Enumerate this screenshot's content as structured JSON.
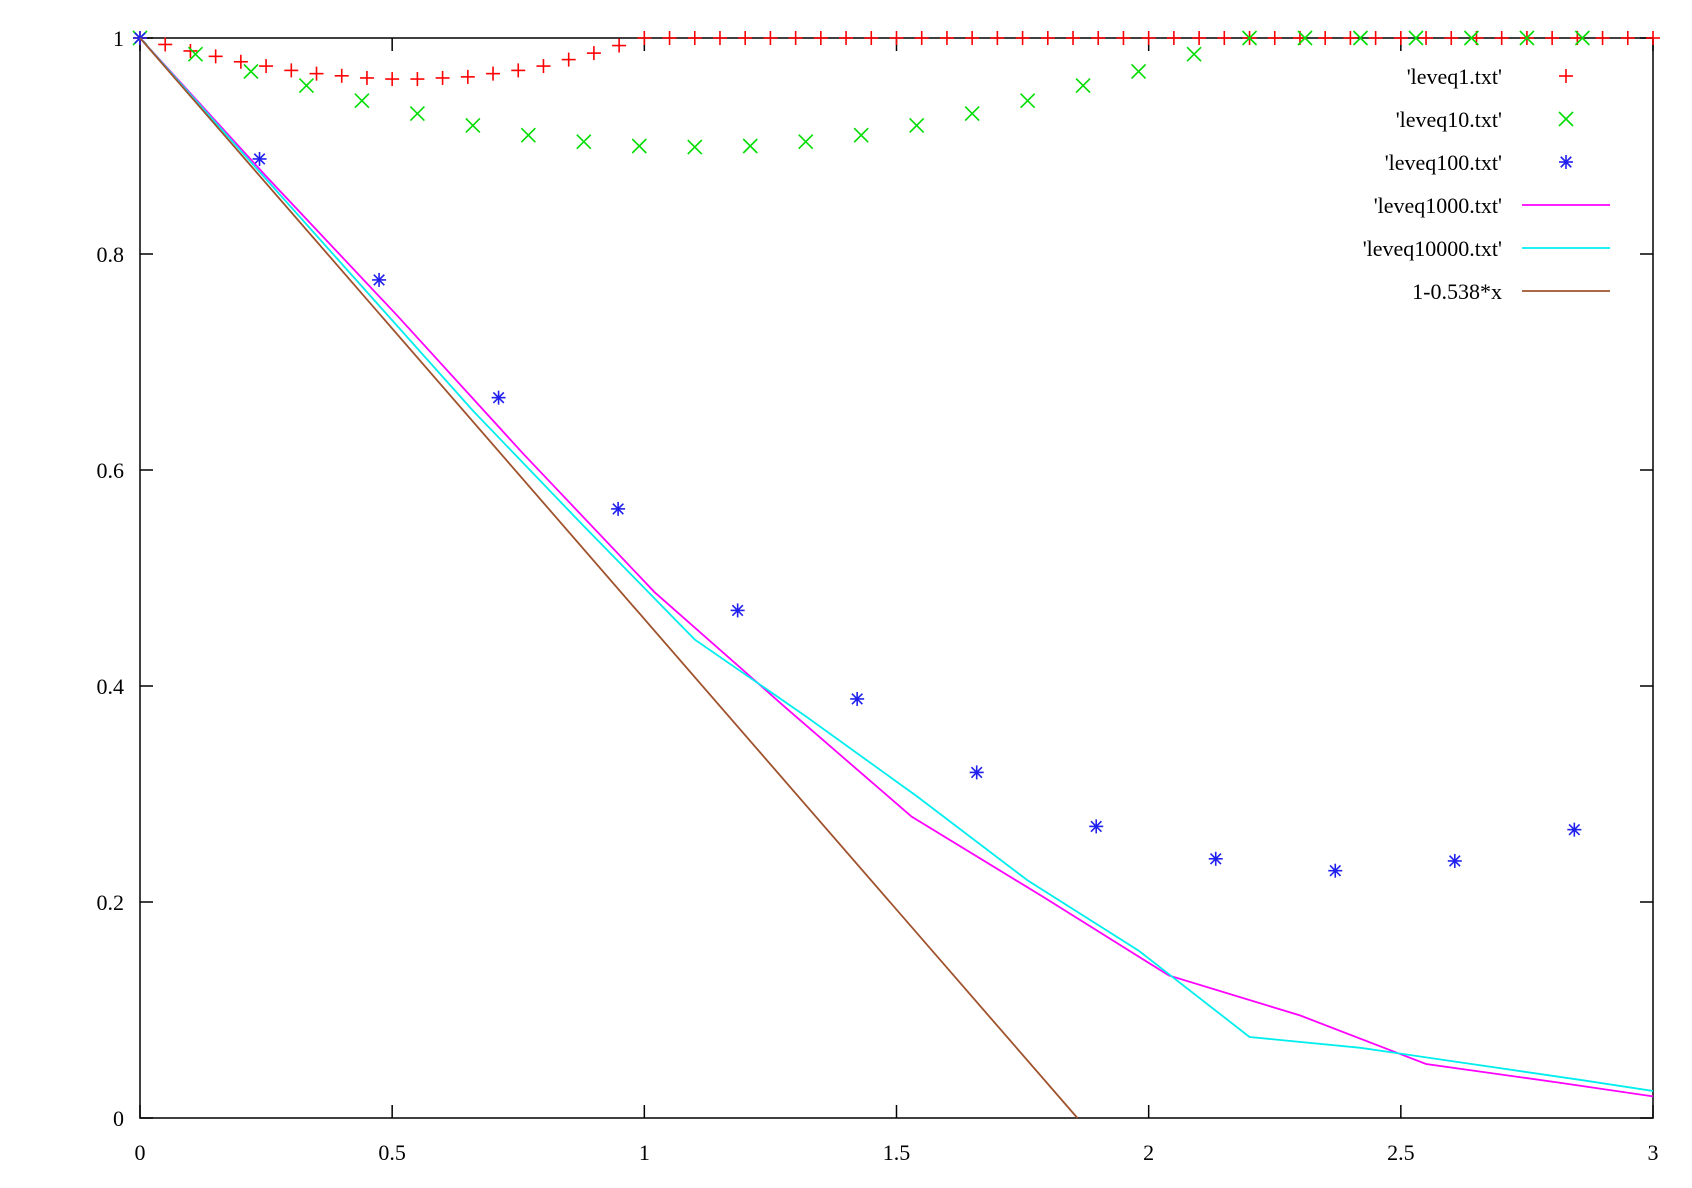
{
  "chart_data": {
    "type": "scatter",
    "title": "",
    "xlabel": "",
    "ylabel": "",
    "xlim": [
      0,
      3
    ],
    "ylim": [
      0,
      1
    ],
    "x_ticks": [
      0,
      0.5,
      1,
      1.5,
      2,
      2.5,
      3
    ],
    "x_tick_labels": [
      "0",
      "0.5",
      "1",
      "1.5",
      "2",
      "2.5",
      "3"
    ],
    "y_ticks": [
      0,
      0.2,
      0.4,
      0.6,
      0.8,
      1
    ],
    "y_tick_labels": [
      "0",
      "0.2",
      "0.4",
      "0.6",
      "0.8",
      "1"
    ],
    "grid": false,
    "legend_position": "top-right",
    "series": [
      {
        "name": "'leveq1.txt'",
        "style": "points",
        "marker": "plus",
        "color": "#ff0000",
        "x": [
          0,
          0.05,
          0.1,
          0.15,
          0.2,
          0.25,
          0.3,
          0.35,
          0.4,
          0.45,
          0.5,
          0.55,
          0.6,
          0.65,
          0.7,
          0.75,
          0.8,
          0.85,
          0.9,
          0.95,
          1.0,
          1.05,
          1.1,
          1.15,
          1.2,
          1.25,
          1.3,
          1.35,
          1.4,
          1.45,
          1.5,
          1.55,
          1.6,
          1.65,
          1.7,
          1.75,
          1.8,
          1.85,
          1.9,
          1.95,
          2.0,
          2.05,
          2.1,
          2.15,
          2.2,
          2.25,
          2.3,
          2.35,
          2.4,
          2.45,
          2.5,
          2.55,
          2.6,
          2.65,
          2.7,
          2.75,
          2.8,
          2.85,
          2.9,
          2.95,
          3.0
        ],
        "y": [
          1.0,
          0.994,
          0.988,
          0.983,
          0.978,
          0.974,
          0.97,
          0.967,
          0.965,
          0.963,
          0.962,
          0.962,
          0.963,
          0.964,
          0.967,
          0.97,
          0.974,
          0.98,
          0.986,
          0.993,
          1.0,
          1.0,
          1.0,
          1.0,
          1.0,
          1.0,
          1.0,
          1.0,
          1.0,
          1.0,
          1.0,
          1.0,
          1.0,
          1.0,
          1.0,
          1.0,
          1.0,
          1.0,
          1.0,
          1.0,
          1.0,
          1.0,
          1.0,
          1.0,
          1.0,
          1.0,
          1.0,
          1.0,
          1.0,
          1.0,
          1.0,
          1.0,
          1.0,
          1.0,
          1.0,
          1.0,
          1.0,
          1.0,
          1.0,
          1.0,
          1.0
        ]
      },
      {
        "name": "'leveq10.txt'",
        "style": "points",
        "marker": "cross",
        "color": "#00dd00",
        "x": [
          0,
          0.11,
          0.22,
          0.33,
          0.44,
          0.55,
          0.66,
          0.77,
          0.88,
          0.99,
          1.1,
          1.21,
          1.32,
          1.43,
          1.54,
          1.65,
          1.76,
          1.87,
          1.98,
          2.09,
          2.2,
          2.31,
          2.42,
          2.53,
          2.64,
          2.75,
          2.86
        ],
        "y": [
          1.0,
          0.985,
          0.969,
          0.956,
          0.942,
          0.93,
          0.919,
          0.91,
          0.904,
          0.9,
          0.899,
          0.9,
          0.904,
          0.91,
          0.919,
          0.93,
          0.942,
          0.956,
          0.969,
          0.985,
          1.0,
          1.0,
          1.0,
          1.0,
          1.0,
          1.0,
          1.0
        ]
      },
      {
        "name": "'leveq100.txt'",
        "style": "points",
        "marker": "star",
        "color": "#2020ee",
        "x": [
          0,
          0.237,
          0.474,
          0.711,
          0.948,
          1.185,
          1.422,
          1.659,
          1.896,
          2.133,
          2.37,
          2.607,
          2.844
        ],
        "y": [
          1.0,
          0.888,
          0.776,
          0.667,
          0.564,
          0.47,
          0.388,
          0.32,
          0.27,
          0.24,
          0.229,
          0.238,
          0.267
        ]
      },
      {
        "name": "'leveq1000.txt'",
        "style": "line",
        "color": "#ff00ff",
        "x": [
          0,
          0.25,
          0.51,
          0.76,
          1.02,
          1.28,
          1.53,
          1.79,
          2.04,
          2.3,
          2.55,
          2.81,
          3.0
        ],
        "y": [
          1.0,
          0.872,
          0.743,
          0.615,
          0.487,
          0.38,
          0.279,
          0.205,
          0.132,
          0.095,
          0.05,
          0.033,
          0.02
        ]
      },
      {
        "name": "'leveq10000.txt'",
        "style": "line",
        "color": "#00eeee",
        "x": [
          0,
          0.22,
          0.44,
          0.66,
          0.88,
          1.1,
          1.32,
          1.54,
          1.76,
          1.98,
          2.2,
          2.42,
          2.64,
          2.86,
          3.0
        ],
        "y": [
          1.0,
          0.885,
          0.77,
          0.655,
          0.548,
          0.443,
          0.372,
          0.298,
          0.22,
          0.155,
          0.075,
          0.065,
          0.05,
          0.035,
          0.025
        ]
      },
      {
        "name": "1-0.538*x",
        "style": "line",
        "color": "#a0522d",
        "x": [
          0,
          1.8587
        ],
        "y": [
          1.0,
          0.0
        ]
      }
    ]
  }
}
